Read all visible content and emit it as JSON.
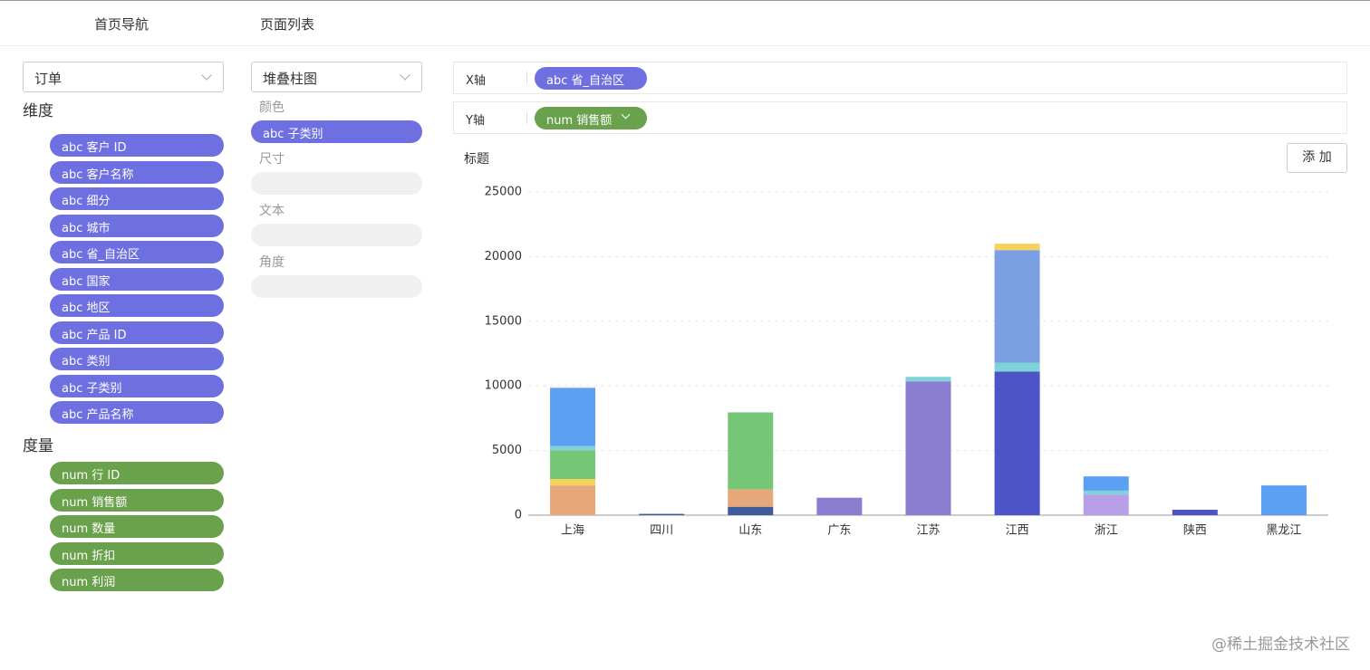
{
  "nav": [
    "首页导航",
    "页面列表"
  ],
  "dataset_select": "订单",
  "chart_type_select": "堆叠柱图",
  "dimensions": {
    "title": "维度",
    "items": [
      "abc 客户 ID",
      "abc 客户名称",
      "abc 细分",
      "abc 城市",
      "abc 省_自治区",
      "abc 国家",
      "abc 地区",
      "abc 产品 ID",
      "abc 类别",
      "abc 子类别",
      "abc 产品名称"
    ]
  },
  "measures": {
    "title": "度量",
    "items": [
      "num 行 ID",
      "num 销售额",
      "num 数量",
      "num 折扣",
      "num 利润"
    ]
  },
  "encodings": {
    "labels": [
      "颜色",
      "尺寸",
      "文本",
      "角度"
    ],
    "color_field": "abc 子类别"
  },
  "x_axis": {
    "label": "X轴",
    "field": "abc 省_自治区"
  },
  "y_axis": {
    "label": "Y轴",
    "field": "num 销售额"
  },
  "title_label": "标题",
  "add_button": "添 加",
  "watermark": "@稀土掘金技术社区",
  "chart_data": {
    "type": "bar",
    "stacked": true,
    "grid": true,
    "categories": [
      "上海",
      "四川",
      "山东",
      "广东",
      "江苏",
      "江西",
      "浙江",
      "陕西",
      "黑龙江"
    ],
    "ylim": [
      0,
      25000
    ],
    "yticks": [
      0,
      5000,
      10000,
      15000,
      20000,
      25000
    ],
    "series": [
      {
        "color": "#3f5b99",
        "values": [
          null,
          100,
          650,
          null,
          null,
          null,
          null,
          null,
          null
        ]
      },
      {
        "color": "#4d54c8",
        "values": [
          null,
          null,
          null,
          null,
          null,
          11100,
          null,
          420,
          null
        ]
      },
      {
        "color": "#8a7dcf",
        "values": [
          null,
          null,
          null,
          1350,
          10350,
          null,
          null,
          null,
          null
        ]
      },
      {
        "color": "#b99ee8",
        "values": [
          null,
          null,
          null,
          null,
          null,
          null,
          1600,
          null,
          null
        ]
      },
      {
        "color": "#e6a77a",
        "values": [
          2300,
          null,
          1350,
          null,
          null,
          null,
          null,
          null,
          null
        ]
      },
      {
        "color": "#f5d25e",
        "values": [
          500,
          null,
          null,
          null,
          null,
          null,
          null,
          null,
          null
        ]
      },
      {
        "color": "#75c677",
        "values": [
          2200,
          null,
          5950,
          null,
          null,
          null,
          null,
          null,
          null
        ]
      },
      {
        "color": "#7fd3d8",
        "values": [
          350,
          null,
          null,
          null,
          350,
          700,
          300,
          null,
          null
        ]
      },
      {
        "color": "#5ba0f2",
        "values": [
          4500,
          null,
          null,
          null,
          null,
          null,
          1100,
          null,
          2300
        ]
      },
      {
        "color": "#7aa0e3",
        "values": [
          null,
          null,
          null,
          null,
          null,
          8700,
          null,
          null,
          null
        ]
      },
      {
        "color": "#f5d25e",
        "values": [
          null,
          null,
          null,
          null,
          null,
          500,
          null,
          null,
          null
        ]
      }
    ]
  }
}
